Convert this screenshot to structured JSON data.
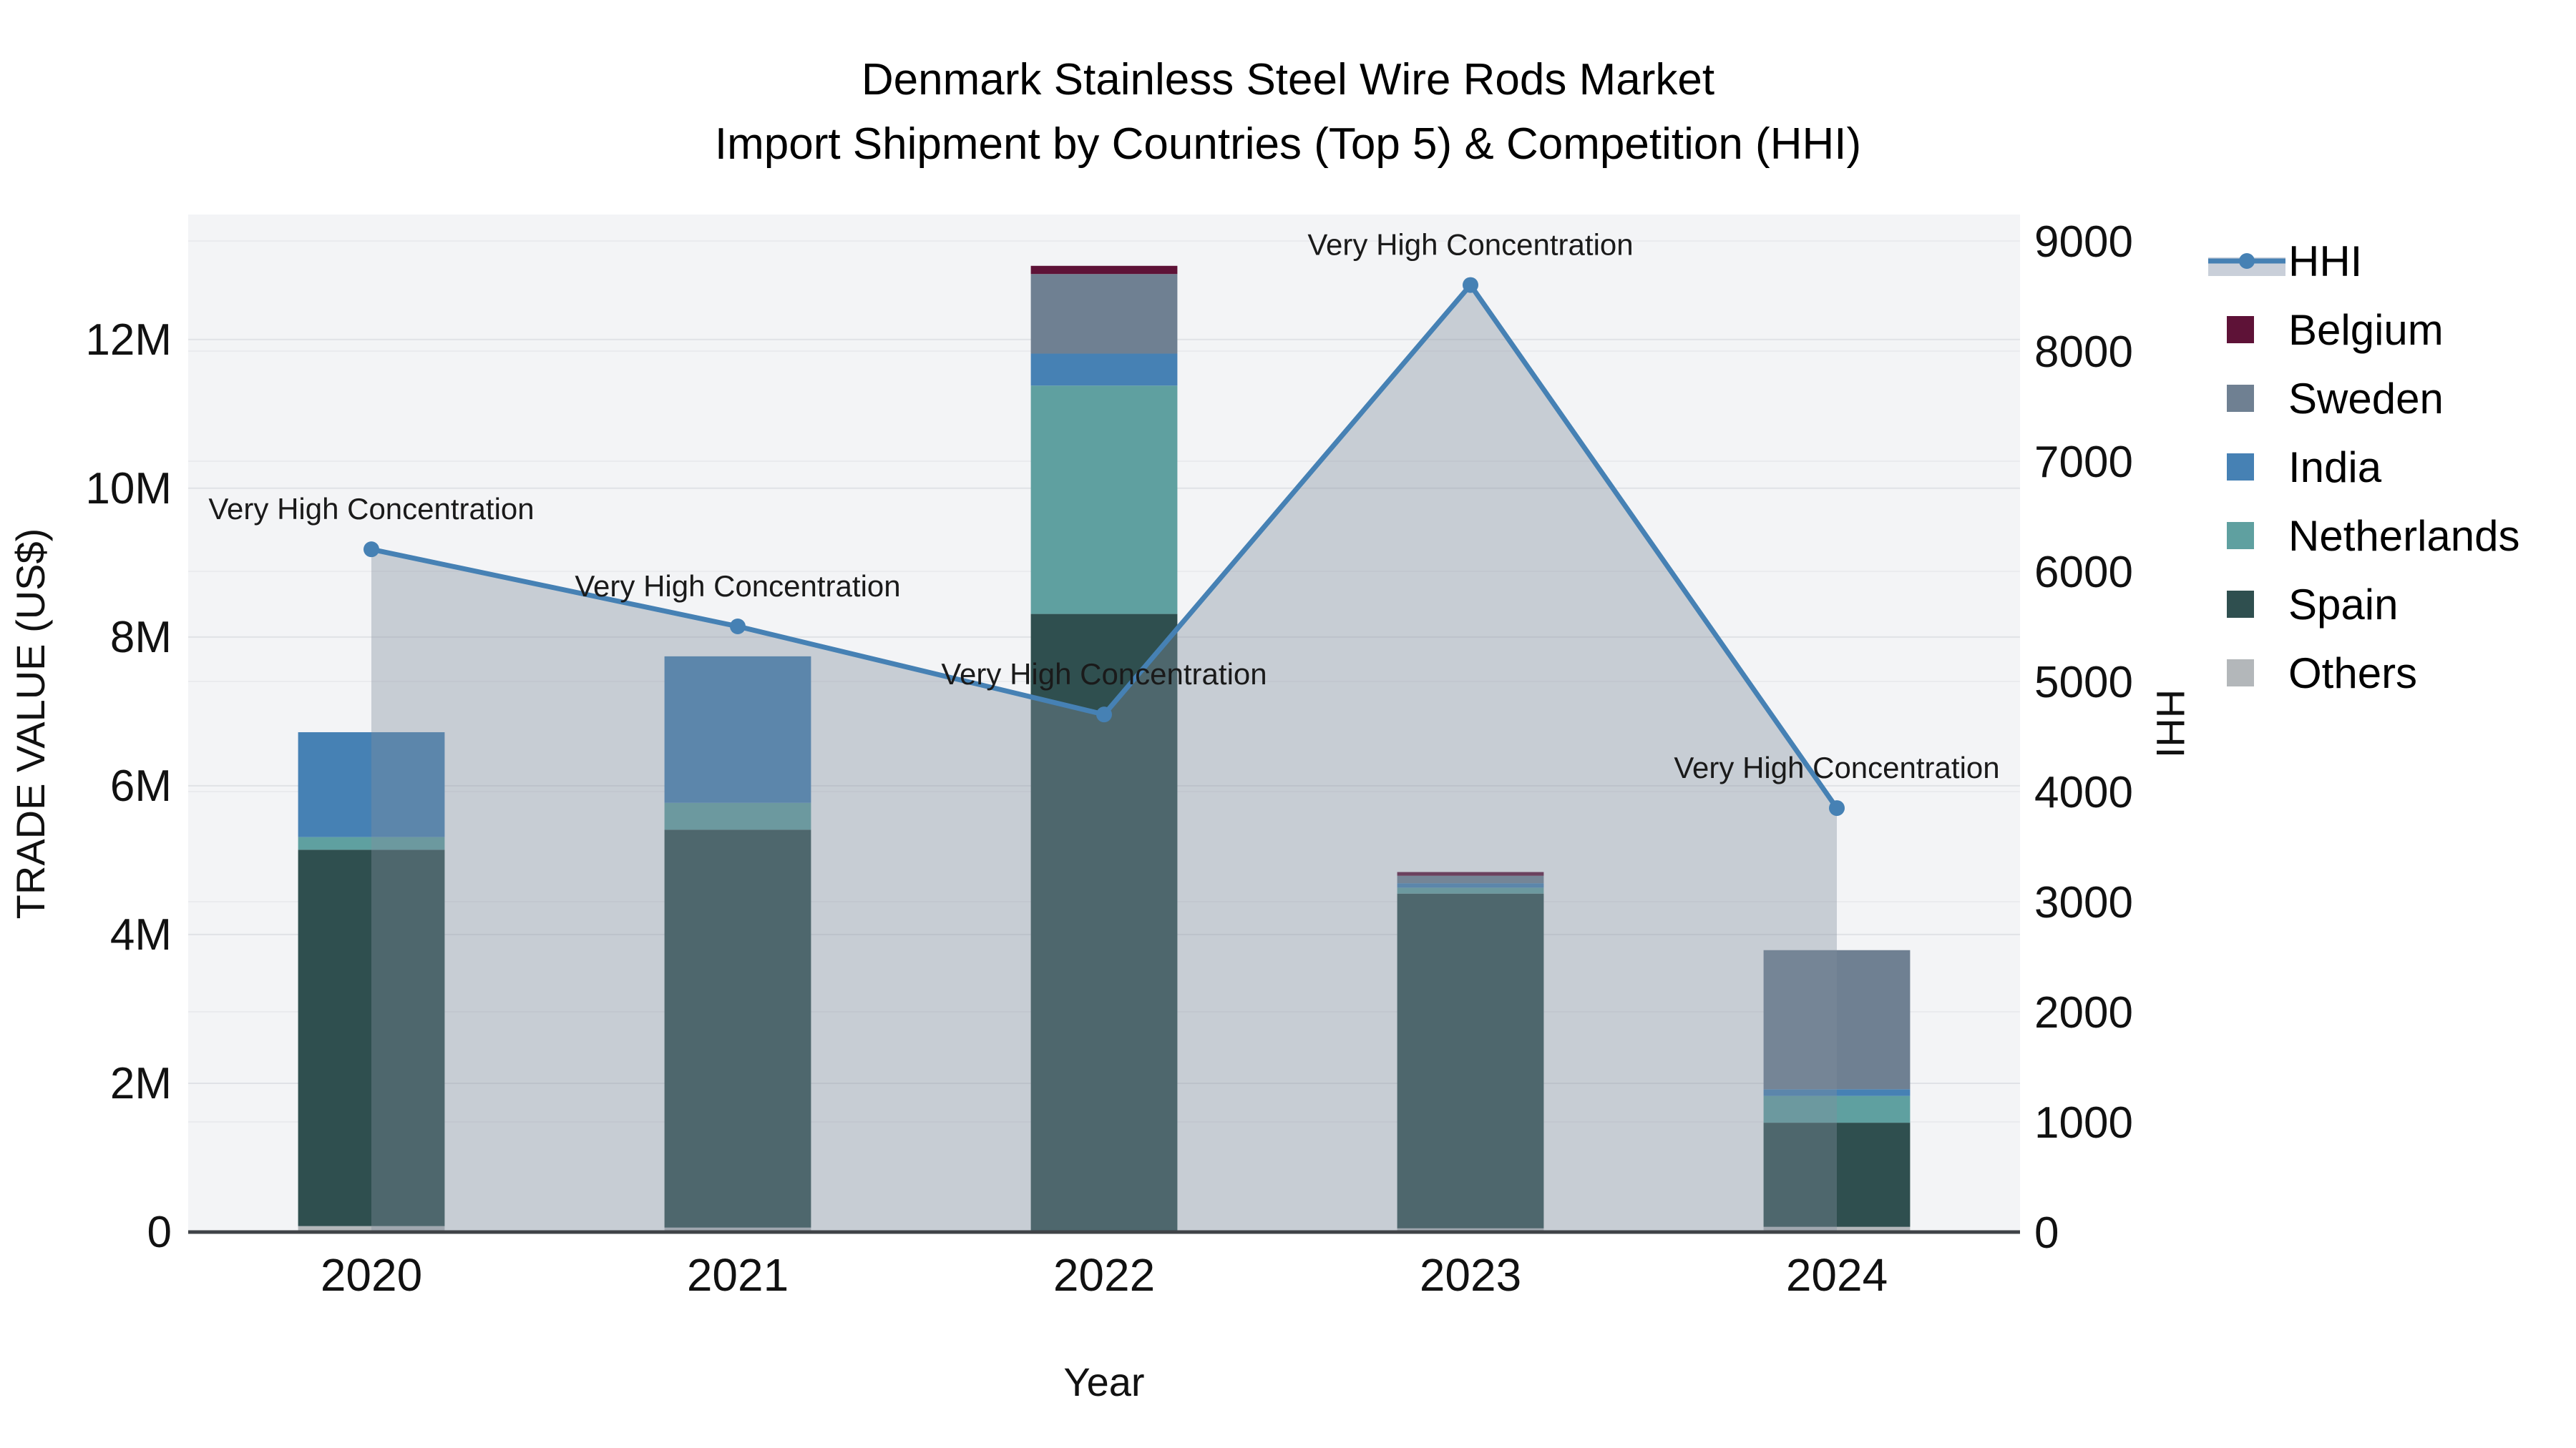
{
  "title": {
    "line1": "Denmark Stainless Steel Wire Rods Market",
    "line2": "Import Shipment by Countries (Top 5) & Competition (HHI)"
  },
  "axis_titles": {
    "x": "Year",
    "y_left": "TRADE VALUE (US$)",
    "y_right": "HHI"
  },
  "chart_data": {
    "type": "combo-stacked-bar-line",
    "categories": [
      "2020",
      "2021",
      "2022",
      "2023",
      "2024"
    ],
    "bar_value_unit": "million US$",
    "bar_stack_order_bottom_to_top": [
      "Others",
      "Spain",
      "Netherlands",
      "India",
      "Sweden",
      "Belgium"
    ],
    "bar_series": [
      {
        "name": "Others",
        "color": "#b3b7ba",
        "values_musd": [
          0.08,
          0.06,
          0.0,
          0.05,
          0.07
        ]
      },
      {
        "name": "Spain",
        "color": "#2f4f4f",
        "values_musd": [
          5.06,
          5.35,
          8.31,
          4.5,
          1.4
        ]
      },
      {
        "name": "Netherlands",
        "color": "#5fa0a0",
        "values_musd": [
          0.17,
          0.36,
          3.07,
          0.08,
          0.36
        ]
      },
      {
        "name": "India",
        "color": "#4681b4",
        "values_musd": [
          1.41,
          1.97,
          0.43,
          0.06,
          0.09
        ]
      },
      {
        "name": "Sweden",
        "color": "#6f8092",
        "values_musd": [
          0.0,
          0.0,
          1.07,
          0.1,
          1.87
        ]
      },
      {
        "name": "Belgium",
        "color": "#5e1237",
        "values_musd": [
          0.0,
          0.0,
          0.11,
          0.05,
          0.0
        ]
      }
    ],
    "bar_totals_musd": [
      6.72,
      7.74,
      12.99,
      4.84,
      3.79
    ],
    "line_series": {
      "name": "HHI",
      "color": "#4681b4",
      "area_fill": "rgba(130,142,158,0.38)",
      "values": [
        6200,
        5500,
        4700,
        8600,
        3850
      ]
    },
    "annotations": [
      "Very High Concentration",
      "Very High Concentration",
      "Very High Concentration",
      "Very High Concentration",
      "Very High Concentration"
    ],
    "y_left": {
      "label": "TRADE VALUE (US$)",
      "tick_labels": [
        "0",
        "2M",
        "4M",
        "6M",
        "8M",
        "10M",
        "12M"
      ],
      "tick_values_musd": [
        0,
        2,
        4,
        6,
        8,
        10,
        12
      ],
      "range_max_musd": 13.68,
      "grid": true
    },
    "y_right": {
      "label": "HHI",
      "tick_labels": [
        "0",
        "1000",
        "2000",
        "3000",
        "4000",
        "5000",
        "6000",
        "7000",
        "8000",
        "9000"
      ],
      "tick_values": [
        0,
        1000,
        2000,
        3000,
        4000,
        5000,
        6000,
        7000,
        8000,
        9000
      ],
      "range_max": 9240,
      "grid": true
    },
    "legend_position": "right",
    "legend": [
      {
        "label": "HHI",
        "type": "line",
        "color": "#4681b4",
        "band_color": "#c9cfd9"
      },
      {
        "label": "Belgium",
        "type": "swatch",
        "color": "#5e1237"
      },
      {
        "label": "Sweden",
        "type": "swatch",
        "color": "#6f8092"
      },
      {
        "label": "India",
        "type": "swatch",
        "color": "#4681b4"
      },
      {
        "label": "Netherlands",
        "type": "swatch",
        "color": "#5fa0a0"
      },
      {
        "label": "Spain",
        "type": "swatch",
        "color": "#2f4f4f"
      },
      {
        "label": "Others",
        "type": "swatch",
        "color": "#b3b7ba"
      }
    ]
  },
  "colors": {
    "plot_bg": "#f3f4f6",
    "grid_major": "#e0e2e6",
    "grid_minor": "#eaebee",
    "axis_line": "#3f4347",
    "text": "#111111",
    "annotation_text": "#1a1a1a"
  }
}
